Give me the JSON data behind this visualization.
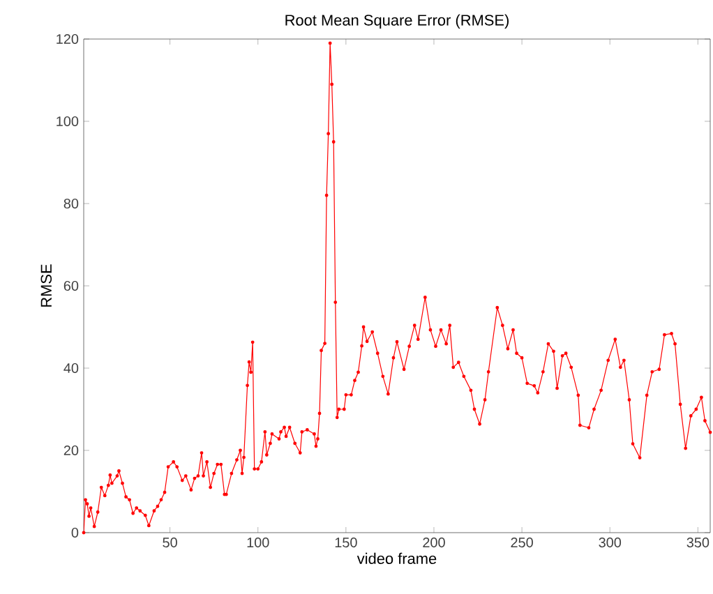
{
  "chart_data": {
    "type": "line",
    "title": "Root Mean Square Error (RMSE)",
    "xlabel": "video frame",
    "ylabel": "RMSE",
    "xlim": [
      1,
      357
    ],
    "xticks": [
      50,
      100,
      150,
      200,
      250,
      300,
      350
    ],
    "ylim": [
      0,
      120
    ],
    "yticks": [
      0,
      20,
      40,
      60,
      80,
      100,
      120
    ],
    "marker": "circle",
    "line_style": "solid",
    "grid": false,
    "series": [
      {
        "color": "#ff0000",
        "x": [
          1,
          2,
          3,
          4,
          5,
          7,
          9,
          11,
          13,
          15,
          16,
          17,
          20,
          21,
          23,
          25,
          27,
          29,
          31,
          33,
          36,
          38,
          41,
          43,
          45,
          47,
          49,
          52,
          54,
          57,
          59,
          62,
          64,
          66,
          68,
          69,
          71,
          73,
          75,
          77,
          79,
          81,
          82,
          85,
          88,
          90,
          91,
          92,
          94,
          95,
          96,
          97,
          98,
          100,
          102,
          104,
          105,
          107,
          108,
          112,
          113,
          115,
          116,
          118,
          121,
          124,
          125,
          128,
          132,
          133,
          134,
          135,
          136,
          138,
          139,
          140,
          141,
          142,
          143,
          144,
          145,
          146,
          149,
          150,
          153,
          155,
          157,
          159,
          160,
          162,
          165,
          168,
          171,
          174,
          177,
          179,
          183,
          186,
          189,
          191,
          195,
          198,
          201,
          204,
          207,
          209,
          211,
          214,
          217,
          221,
          223,
          226,
          229,
          231,
          236,
          239,
          242,
          245,
          247,
          250,
          253,
          257,
          259,
          262,
          265,
          268,
          270,
          273,
          275,
          278,
          282,
          283,
          288,
          291,
          295,
          299,
          303,
          306,
          308,
          311,
          313,
          317,
          321,
          324,
          328,
          331,
          335,
          337,
          340,
          343,
          346,
          349,
          352,
          354,
          357
        ],
        "values": [
          0,
          8,
          7,
          4,
          6,
          1.5,
          5,
          11,
          9,
          11.5,
          14,
          12,
          13.8,
          15,
          12,
          8.7,
          8,
          4.7,
          6,
          5.3,
          4.2,
          1.7,
          5.3,
          6.4,
          8,
          9.8,
          16,
          17.2,
          16,
          12.7,
          13.8,
          10.4,
          13.2,
          13.8,
          19.4,
          13.8,
          17.2,
          11,
          14.4,
          16.6,
          16.6,
          9.3,
          9.3,
          14.4,
          17.7,
          20,
          14.4,
          18.3,
          35.8,
          41.5,
          39,
          46.3,
          15.5,
          15.5,
          17.2,
          24.5,
          18.9,
          21.7,
          24,
          22.8,
          24.5,
          25.6,
          23.4,
          25.6,
          21.7,
          19.4,
          24.5,
          25,
          24,
          21,
          22.8,
          29,
          44.3,
          46,
          82,
          97,
          119,
          109,
          95,
          56,
          28,
          30,
          30,
          33.5,
          33.5,
          37,
          39,
          45.4,
          50,
          46.5,
          48.8,
          43.6,
          38,
          33.7,
          42.5,
          46.4,
          39.7,
          45.3,
          50.4,
          47,
          57.2,
          49.3,
          45.3,
          49.3,
          45.9,
          50.4,
          40.2,
          41.4,
          38,
          34.6,
          30,
          26.4,
          32.3,
          39.1,
          54.7,
          50.4,
          44.7,
          49.3,
          43.6,
          42.5,
          36.3,
          35.7,
          34,
          39.1,
          45.9,
          44.1,
          35.1,
          43,
          43.6,
          40.2,
          33.4,
          26.1,
          25.5,
          30,
          34.6,
          41.9,
          47,
          40.2,
          41.9,
          32.3,
          21.6,
          18.2,
          33.4,
          39.1,
          39.7,
          48.1,
          48.4,
          45.9,
          31.2,
          20.5,
          28.4,
          30,
          32.9,
          27.2,
          24.4
        ]
      }
    ]
  }
}
